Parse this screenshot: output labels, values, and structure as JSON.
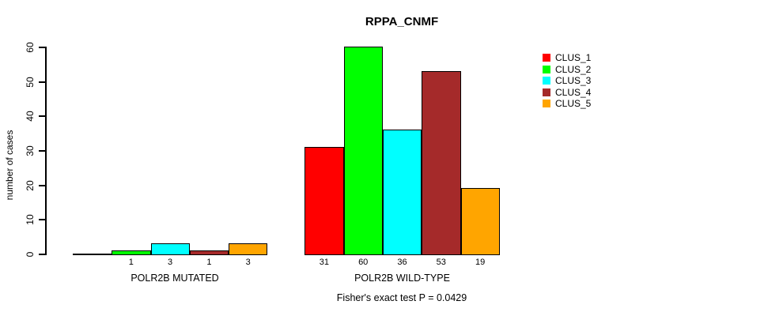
{
  "title": "RPPA_CNMF",
  "footer_annotation": "Fisher's exact test P = 0.0429",
  "chart_data": {
    "type": "bar",
    "title": "RPPA_CNMF",
    "xlabel": "",
    "ylabel": "number of cases",
    "ylim": [
      0,
      60
    ],
    "yticks": [
      0,
      10,
      20,
      30,
      40,
      50,
      60
    ],
    "grid": false,
    "legend_position": "right",
    "series": [
      {
        "name": "CLUS_1",
        "color": "#FF0000"
      },
      {
        "name": "CLUS_2",
        "color": "#00FF00"
      },
      {
        "name": "CLUS_3",
        "color": "#00FFFF"
      },
      {
        "name": "CLUS_4",
        "color": "#A52A2A"
      },
      {
        "name": "CLUS_5",
        "color": "#FFA500"
      }
    ],
    "groups": [
      {
        "label": "POLR2B MUTATED",
        "values": [
          0,
          1,
          3,
          1,
          3
        ],
        "bar_labels": [
          "",
          "1",
          "3",
          "1",
          "3"
        ]
      },
      {
        "label": "POLR2B WILD-TYPE",
        "values": [
          31,
          60,
          36,
          53,
          19
        ],
        "bar_labels": [
          "31",
          "60",
          "36",
          "53",
          "19"
        ]
      }
    ],
    "annotation": "Fisher's exact test P = 0.0429"
  }
}
